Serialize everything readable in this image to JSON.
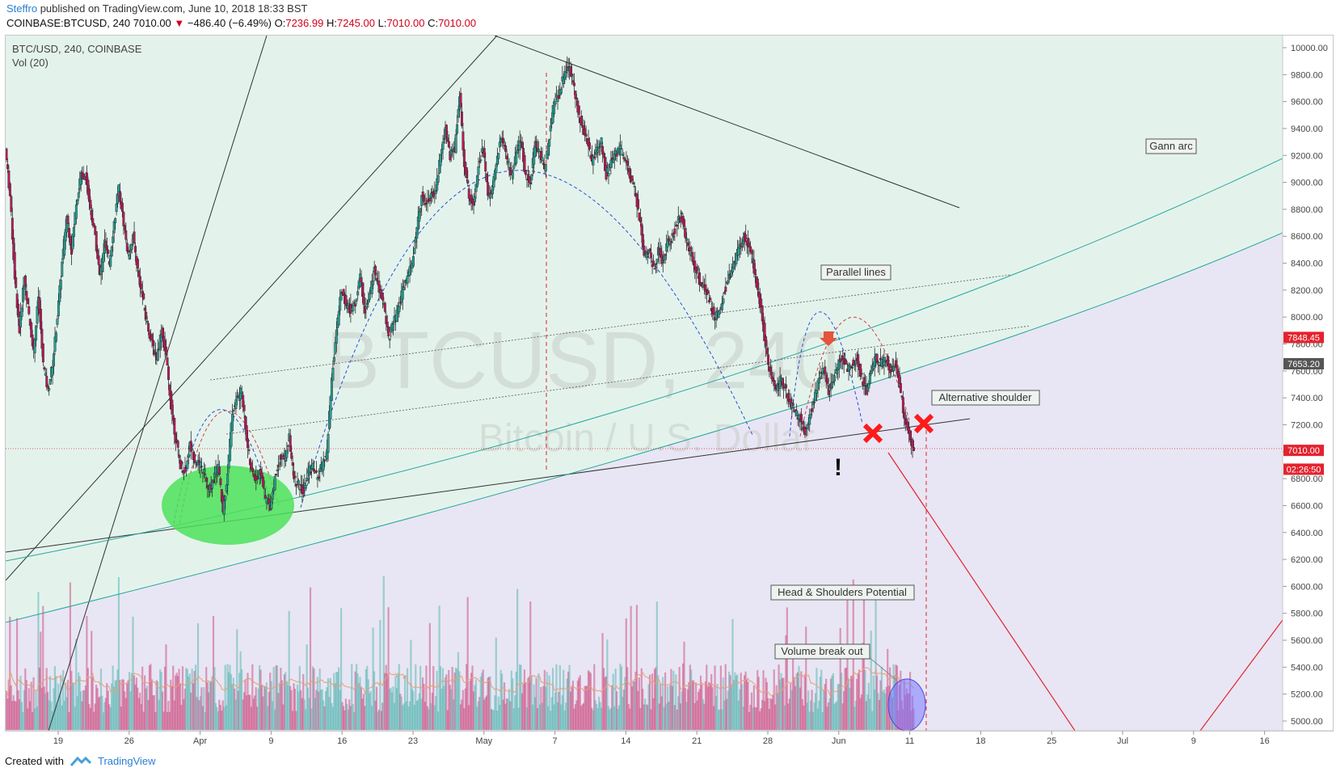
{
  "header": {
    "author": "Steffro",
    "published": "published on TradingView.com, June 10, 2018 18:33 BST",
    "symbol": "COINBASE:BTCUSD, 240",
    "last": "7010.00",
    "change": "−486.40 (−6.49%)",
    "o_label": "O:",
    "o_value": "7236.99",
    "h_label": "H:",
    "h_value": "7245.00",
    "l_label": "L:",
    "l_value": "7010.00",
    "c_label": "C:",
    "c_value": "7010.00"
  },
  "legend": {
    "line1": "BTC/USD, 240, COINBASE",
    "line2": "Vol (20)"
  },
  "watermark": {
    "main": "BTCUSD, 240",
    "sub": "Bitcoin / U.S. Dollar"
  },
  "colors": {
    "up": "#26a69a",
    "down": "#c2185b",
    "bullish_zone": "#e3f3ec",
    "bearish_zone": "#e8e6f4",
    "accent_red": "#e5222e"
  },
  "chart_data": {
    "type": "candlestick",
    "symbol": "BTC/USD",
    "timeframe": "240",
    "exchange": "COINBASE",
    "y_axis": {
      "min": 5000,
      "max": 10000,
      "ticks": [
        "10000.00",
        "9800.00",
        "9600.00",
        "9400.00",
        "9200.00",
        "9000.00",
        "8800.00",
        "8600.00",
        "8400.00",
        "8200.00",
        "8000.00",
        "7800.00",
        "7600.00",
        "7400.00",
        "7200.00",
        "7000.00",
        "6800.00",
        "6600.00",
        "6400.00",
        "6200.00",
        "6000.00",
        "5800.00",
        "5600.00",
        "5400.00",
        "5200.00",
        "5000.00"
      ]
    },
    "x_axis": {
      "ticks": [
        "19",
        "26",
        "Apr",
        "9",
        "16",
        "23",
        "May",
        "7",
        "14",
        "21",
        "28",
        "Jun",
        "11",
        "18",
        "25",
        "Jul",
        "9",
        "16"
      ]
    },
    "price_labels": [
      {
        "text": "7848.45",
        "value": 7848.45,
        "color": "#e5222e"
      },
      {
        "text": "7653.20",
        "value": 7653.2,
        "color": "#555555"
      },
      {
        "text": "7010.00",
        "value": 7010.0,
        "color": "#e5222e"
      },
      {
        "text": "02:26:50",
        "value": 6870,
        "color": "#e5222e"
      }
    ],
    "price_path": [
      [
        0,
        9250
      ],
      [
        5,
        8900
      ],
      [
        10,
        8300
      ],
      [
        15,
        7900
      ],
      [
        20,
        8300
      ],
      [
        25,
        8000
      ],
      [
        30,
        7750
      ],
      [
        35,
        8150
      ],
      [
        40,
        7650
      ],
      [
        45,
        7450
      ],
      [
        50,
        7650
      ],
      [
        55,
        8000
      ],
      [
        60,
        8400
      ],
      [
        65,
        8750
      ],
      [
        70,
        8500
      ],
      [
        75,
        8850
      ],
      [
        80,
        9050
      ],
      [
        85,
        9050
      ],
      [
        90,
        8800
      ],
      [
        95,
        8600
      ],
      [
        100,
        8300
      ],
      [
        105,
        8550
      ],
      [
        110,
        8400
      ],
      [
        115,
        8700
      ],
      [
        120,
        8950
      ],
      [
        125,
        8700
      ],
      [
        130,
        8450
      ],
      [
        135,
        8600
      ],
      [
        140,
        8350
      ],
      [
        145,
        8150
      ],
      [
        150,
        7950
      ],
      [
        155,
        7800
      ],
      [
        160,
        7700
      ],
      [
        165,
        7900
      ],
      [
        170,
        7700
      ],
      [
        175,
        7350
      ],
      [
        180,
        7100
      ],
      [
        185,
        6900
      ],
      [
        190,
        6850
      ],
      [
        195,
        7050
      ],
      [
        200,
        6950
      ],
      [
        205,
        6900
      ],
      [
        210,
        6850
      ],
      [
        215,
        6700
      ],
      [
        220,
        6800
      ],
      [
        225,
        6900
      ],
      [
        230,
        6550
      ],
      [
        235,
        6850
      ],
      [
        240,
        7300
      ],
      [
        245,
        7400
      ],
      [
        250,
        7450
      ],
      [
        255,
        7100
      ],
      [
        260,
        6850
      ],
      [
        265,
        6800
      ],
      [
        270,
        6850
      ],
      [
        275,
        6650
      ],
      [
        280,
        6600
      ],
      [
        285,
        6800
      ],
      [
        290,
        6950
      ],
      [
        295,
        6950
      ],
      [
        300,
        7100
      ],
      [
        305,
        6800
      ],
      [
        310,
        6750
      ],
      [
        315,
        6700
      ],
      [
        320,
        6850
      ],
      [
        325,
        6900
      ],
      [
        330,
        6800
      ],
      [
        335,
        6900
      ],
      [
        340,
        7000
      ],
      [
        345,
        7550
      ],
      [
        350,
        7900
      ],
      [
        355,
        8200
      ],
      [
        360,
        8100
      ],
      [
        365,
        8050
      ],
      [
        370,
        8100
      ],
      [
        375,
        8300
      ],
      [
        380,
        8050
      ],
      [
        385,
        8150
      ],
      [
        390,
        8350
      ],
      [
        395,
        8200
      ],
      [
        400,
        8100
      ],
      [
        405,
        7850
      ],
      [
        410,
        7950
      ],
      [
        415,
        8050
      ],
      [
        420,
        8200
      ],
      [
        425,
        8300
      ],
      [
        430,
        8400
      ],
      [
        435,
        8650
      ],
      [
        440,
        8900
      ],
      [
        445,
        8850
      ],
      [
        450,
        8900
      ],
      [
        455,
        8950
      ],
      [
        460,
        9200
      ],
      [
        465,
        9400
      ],
      [
        470,
        9200
      ],
      [
        475,
        9250
      ],
      [
        480,
        9650
      ],
      [
        485,
        9150
      ],
      [
        490,
        8900
      ],
      [
        495,
        8850
      ],
      [
        500,
        9150
      ],
      [
        505,
        9250
      ],
      [
        510,
        8900
      ],
      [
        515,
        8950
      ],
      [
        520,
        9200
      ],
      [
        525,
        9350
      ],
      [
        530,
        9150
      ],
      [
        535,
        9050
      ],
      [
        540,
        9200
      ],
      [
        545,
        9300
      ],
      [
        550,
        9050
      ],
      [
        555,
        9000
      ],
      [
        560,
        9300
      ],
      [
        565,
        9200
      ],
      [
        570,
        9100
      ],
      [
        575,
        9350
      ],
      [
        580,
        9600
      ],
      [
        585,
        9650
      ],
      [
        590,
        9800
      ],
      [
        595,
        9850
      ],
      [
        600,
        9750
      ],
      [
        605,
        9550
      ],
      [
        610,
        9400
      ],
      [
        615,
        9300
      ],
      [
        620,
        9150
      ],
      [
        625,
        9250
      ],
      [
        630,
        9300
      ],
      [
        635,
        9050
      ],
      [
        640,
        9150
      ],
      [
        645,
        9200
      ],
      [
        650,
        9250
      ],
      [
        655,
        9150
      ],
      [
        660,
        9050
      ],
      [
        665,
        8950
      ],
      [
        670,
        8750
      ],
      [
        675,
        8450
      ],
      [
        680,
        8500
      ],
      [
        685,
        8350
      ],
      [
        690,
        8500
      ],
      [
        695,
        8400
      ],
      [
        700,
        8550
      ],
      [
        705,
        8600
      ],
      [
        710,
        8700
      ],
      [
        715,
        8750
      ],
      [
        720,
        8550
      ],
      [
        725,
        8450
      ],
      [
        730,
        8350
      ],
      [
        735,
        8250
      ],
      [
        740,
        8200
      ],
      [
        745,
        8100
      ],
      [
        750,
        8000
      ],
      [
        755,
        8050
      ],
      [
        760,
        8200
      ],
      [
        765,
        8300
      ],
      [
        770,
        8400
      ],
      [
        775,
        8500
      ],
      [
        780,
        8600
      ],
      [
        785,
        8550
      ],
      [
        790,
        8400
      ],
      [
        795,
        8200
      ],
      [
        800,
        8000
      ],
      [
        805,
        7700
      ],
      [
        810,
        7550
      ],
      [
        815,
        7450
      ],
      [
        820,
        7550
      ],
      [
        825,
        7450
      ],
      [
        830,
        7350
      ],
      [
        835,
        7300
      ],
      [
        840,
        7250
      ],
      [
        845,
        7150
      ],
      [
        850,
        7250
      ],
      [
        855,
        7400
      ],
      [
        860,
        7550
      ],
      [
        865,
        7600
      ],
      [
        870,
        7450
      ],
      [
        875,
        7550
      ],
      [
        880,
        7650
      ],
      [
        885,
        7700
      ],
      [
        890,
        7600
      ],
      [
        895,
        7650
      ],
      [
        900,
        7700
      ],
      [
        905,
        7550
      ],
      [
        910,
        7450
      ],
      [
        915,
        7600
      ],
      [
        920,
        7700
      ],
      [
        925,
        7650
      ],
      [
        930,
        7700
      ],
      [
        935,
        7600
      ],
      [
        940,
        7650
      ],
      [
        945,
        7500
      ],
      [
        950,
        7250
      ],
      [
        955,
        7150
      ],
      [
        960,
        7010
      ]
    ],
    "volume": {
      "ylim": [
        0,
        3000
      ],
      "label": "Vol (20)"
    },
    "annotations": [
      {
        "type": "label",
        "text": "Gann arc"
      },
      {
        "type": "label",
        "text": "Parallel lines"
      },
      {
        "type": "label",
        "text": "Alternative shoulder"
      },
      {
        "type": "label",
        "text": "Head & Shoulders Potential"
      },
      {
        "type": "label",
        "text": "Volume break out"
      },
      {
        "type": "marker",
        "text": "!"
      }
    ]
  },
  "footer": {
    "created_with": "Created with",
    "brand": "TradingView"
  }
}
